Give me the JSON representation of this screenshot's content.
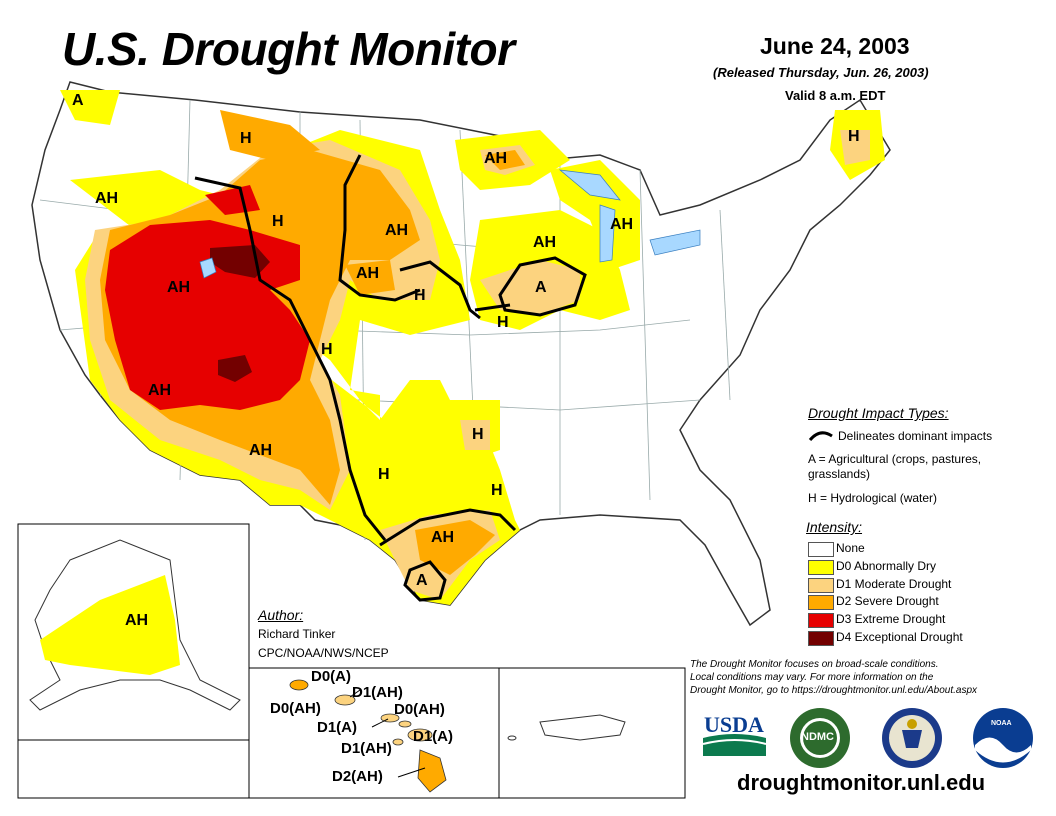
{
  "header": {
    "title": "U.S. Drought Monitor",
    "date": "June 24, 2003",
    "released": "(Released Thursday, Jun. 26, 2003)",
    "valid": "Valid 8 a.m. EDT"
  },
  "impact_legend": {
    "heading": "Drought Impact Types:",
    "delineates": "Delineates dominant impacts",
    "agricultural": "A = Agricultural (crops, pastures,",
    "agricultural_2": "grasslands)",
    "hydrological": "H = Hydrological (water)"
  },
  "intensity_legend": {
    "heading": "Intensity:",
    "items": [
      {
        "label": "None",
        "color": "#ffffff"
      },
      {
        "label": "D0 Abnormally Dry",
        "color": "#ffff00"
      },
      {
        "label": "D1 Moderate Drought",
        "color": "#fcd37f"
      },
      {
        "label": "D2 Severe Drought",
        "color": "#ffaa00"
      },
      {
        "label": "D3 Extreme Drought",
        "color": "#e60000"
      },
      {
        "label": "D4 Exceptional Drought",
        "color": "#730000"
      }
    ]
  },
  "author": {
    "heading": "Author:",
    "name": "Richard Tinker",
    "org": "CPC/NOAA/NWS/NCEP"
  },
  "note": {
    "line1": "The Drought Monitor focuses on broad-scale conditions.",
    "line2": "Local conditions may vary. For more information on the",
    "line3": "Drought Monitor, go to https://droughtmonitor.unl.edu/About.aspx"
  },
  "website": "droughtmonitor.unl.edu",
  "logos": {
    "usda": "USDA",
    "ndmc": "NDMC",
    "noaa": "NOAA"
  },
  "map_labels": {
    "ah_nw": "AH",
    "a_wa": "A",
    "h_mt": "H",
    "h_wy": "H",
    "ah_ut": "AH",
    "ah_az": "AH",
    "ah_nm": "AH",
    "h_co": "H",
    "ah_sd": "AH",
    "ah_ne": "AH",
    "h_ne": "H",
    "ah_mn": "AH",
    "ah_wi": "AH",
    "ah_mi": "AH",
    "a_il": "A",
    "h_ia": "H",
    "h_ok": "H",
    "h_tx": "H",
    "h_ar": "H",
    "ah_tx": "AH",
    "a_tx": "A",
    "h_me": "H",
    "ah_ak": "AH"
  },
  "hawaii_labels": {
    "l1": "D0(A)",
    "l2": "D1(AH)",
    "l3": "D0(AH)",
    "l4": "D0(AH)",
    "l5": "D1(A)",
    "l6": "D1(AH)",
    "l7": "D1(A)",
    "l8": "D2(AH)"
  }
}
